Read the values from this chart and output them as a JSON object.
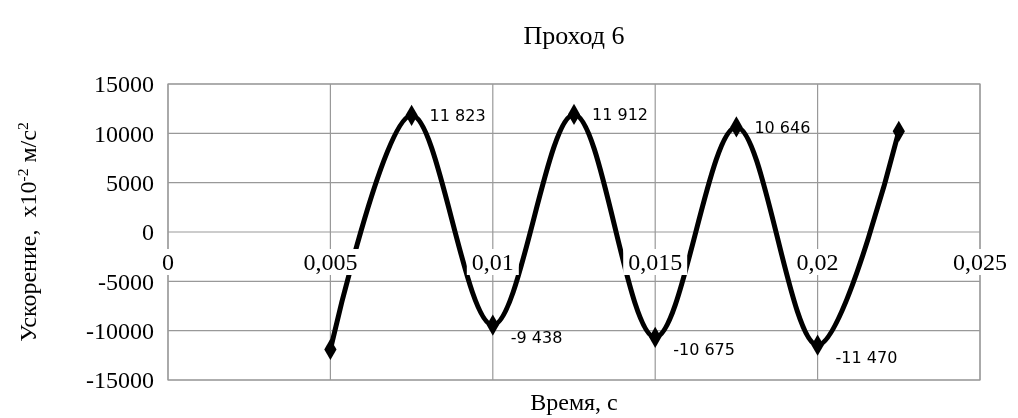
{
  "chart_data": {
    "type": "line",
    "title": "Проход 6",
    "xlabel": "Время, с",
    "ylabel": "Ускорение,  x10$^{-2}$ м/с$^{2}$",
    "x": [
      0.005,
      0.0075,
      0.01,
      0.0125,
      0.015,
      0.0175,
      0.02,
      0.0225
    ],
    "series": [
      {
        "color": "#000000",
        "values": [
          -11900,
          11823,
          -9438,
          11912,
          -10675,
          10646,
          -11470,
          10200
        ],
        "value_labels": [
          null,
          "11 823",
          "-9 438",
          "11 912",
          "-10 675",
          "10 646",
          "-11 470",
          null
        ]
      }
    ],
    "xlim": [
      0,
      0.025
    ],
    "xticks": [
      0,
      {
        "value": 0.005,
        "label": "0,005"
      },
      {
        "value": 0.01,
        "label": "0,01"
      },
      {
        "value": 0.015,
        "label": "0,015"
      },
      {
        "value": 0.02,
        "label": "0,02"
      },
      {
        "value": 0.025,
        "label": "0,025"
      }
    ],
    "ylim": [
      -15000,
      15000
    ],
    "yticks": [
      -15000,
      -10000,
      -5000,
      0,
      5000,
      10000,
      15000
    ],
    "grid": true,
    "marker": "diamond",
    "line_style": "solid"
  }
}
